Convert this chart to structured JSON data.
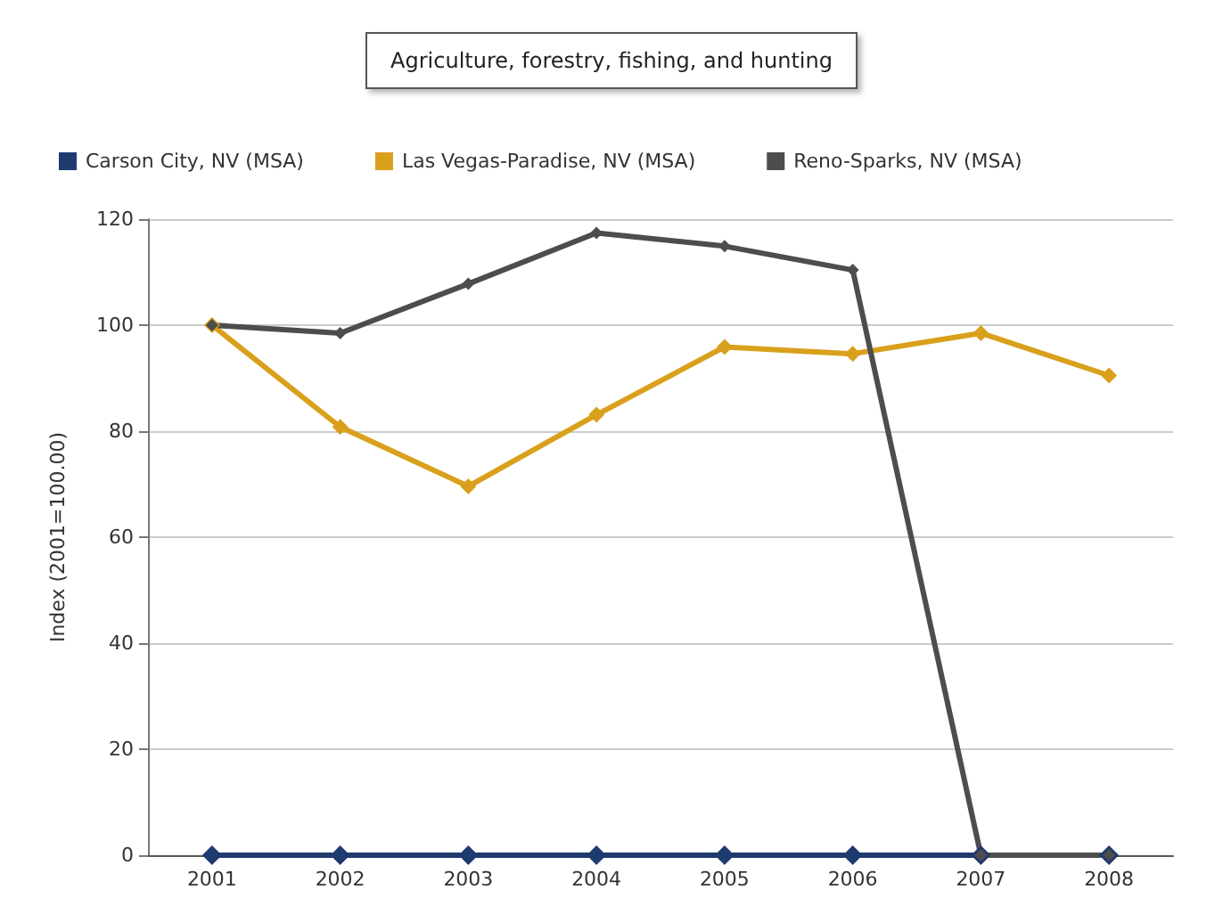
{
  "chart_data": {
    "type": "line",
    "title": "Agriculture, forestry, fishing, and hunting",
    "ylabel": "Index (2001=100.00)",
    "categories": [
      "2001",
      "2002",
      "2003",
      "2004",
      "2005",
      "2006",
      "2007",
      "2008"
    ],
    "series": [
      {
        "name": "Carson City, NV (MSA)",
        "color": "#1f3a6e",
        "values": [
          0,
          0,
          0,
          0,
          0,
          0,
          0,
          0
        ]
      },
      {
        "name": "Las Vegas-Paradise, NV (MSA)",
        "color": "#d9a01c",
        "values": [
          100,
          80.8,
          69.6,
          83.1,
          95.9,
          94.6,
          98.5,
          90.5
        ]
      },
      {
        "name": "Reno-Sparks, NV (MSA)",
        "color": "#4d4d4d",
        "values": [
          100,
          98.5,
          107.8,
          117.4,
          114.9,
          110.4,
          0,
          0
        ]
      }
    ],
    "ylim": [
      0,
      120
    ],
    "yticks": [
      0,
      20,
      40,
      60,
      80,
      100,
      120
    ],
    "grid": "y",
    "legend": "top left",
    "marker": "diamond",
    "line_style": "solid"
  }
}
